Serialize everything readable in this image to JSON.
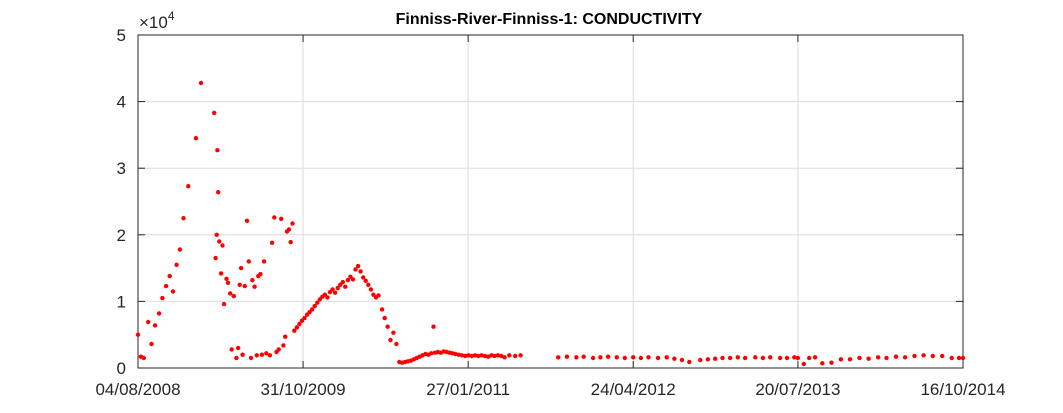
{
  "chart_data": {
    "type": "scatter",
    "title": "Finniss-River-Finniss-1: CONDUCTIVITY",
    "xlabel": "",
    "ylabel": "",
    "x_type": "date",
    "xlim": [
      "2008-08-04",
      "2014-10-16"
    ],
    "x_ticks": [
      {
        "date": "2008-08-04",
        "label": "04/08/2008"
      },
      {
        "date": "2009-10-31",
        "label": "31/10/2009"
      },
      {
        "date": "2011-01-27",
        "label": "27/01/2011"
      },
      {
        "date": "2012-04-24",
        "label": "24/04/2012"
      },
      {
        "date": "2013-07-20",
        "label": "20/07/2013"
      },
      {
        "date": "2014-10-16",
        "label": "16/10/2014"
      }
    ],
    "ylim": [
      0,
      50000
    ],
    "y_ticks": [
      {
        "value": 0,
        "label": "0"
      },
      {
        "value": 10000,
        "label": "1"
      },
      {
        "value": 20000,
        "label": "2"
      },
      {
        "value": 30000,
        "label": "3"
      },
      {
        "value": 40000,
        "label": "4"
      },
      {
        "value": 50000,
        "label": "5"
      }
    ],
    "y_multiplier_base": "×10",
    "y_multiplier_exp": "4",
    "grid": true,
    "marker_color": "#ff0000",
    "points": [
      [
        "2008-08-04",
        5000
      ],
      [
        "2008-08-12",
        1700
      ],
      [
        "2008-08-20",
        1500
      ],
      [
        "2008-09-01",
        6900
      ],
      [
        "2008-09-10",
        3600
      ],
      [
        "2008-09-20",
        6400
      ],
      [
        "2008-10-01",
        8200
      ],
      [
        "2008-10-10",
        10500
      ],
      [
        "2008-10-20",
        12300
      ],
      [
        "2008-10-30",
        13800
      ],
      [
        "2008-11-08",
        11500
      ],
      [
        "2008-11-18",
        15500
      ],
      [
        "2008-11-27",
        17800
      ],
      [
        "2008-12-07",
        22500
      ],
      [
        "2008-12-20",
        27300
      ],
      [
        "2009-01-10",
        34500
      ],
      [
        "2009-01-24",
        42800
      ],
      [
        "2009-03-01",
        38300
      ],
      [
        "2009-03-05",
        16500
      ],
      [
        "2009-03-08",
        20000
      ],
      [
        "2009-03-10",
        32700
      ],
      [
        "2009-03-12",
        26400
      ],
      [
        "2009-03-15",
        19000
      ],
      [
        "2009-03-20",
        14200
      ],
      [
        "2009-03-24",
        18400
      ],
      [
        "2009-03-28",
        9600
      ],
      [
        "2009-04-04",
        13400
      ],
      [
        "2009-04-08",
        12800
      ],
      [
        "2009-04-14",
        11200
      ],
      [
        "2009-04-18",
        2800
      ],
      [
        "2009-04-24",
        10800
      ],
      [
        "2009-05-01",
        1500
      ],
      [
        "2009-05-06",
        3000
      ],
      [
        "2009-05-10",
        12500
      ],
      [
        "2009-05-14",
        15000
      ],
      [
        "2009-05-18",
        2000
      ],
      [
        "2009-05-24",
        12300
      ],
      [
        "2009-05-30",
        22100
      ],
      [
        "2009-06-04",
        16000
      ],
      [
        "2009-06-10",
        1500
      ],
      [
        "2009-06-14",
        13200
      ],
      [
        "2009-06-20",
        12200
      ],
      [
        "2009-06-26",
        1900
      ],
      [
        "2009-06-30",
        13800
      ],
      [
        "2009-07-06",
        14100
      ],
      [
        "2009-07-10",
        2000
      ],
      [
        "2009-07-16",
        16000
      ],
      [
        "2009-07-22",
        2200
      ],
      [
        "2009-08-01",
        1900
      ],
      [
        "2009-08-07",
        18800
      ],
      [
        "2009-08-13",
        22600
      ],
      [
        "2009-08-19",
        2400
      ],
      [
        "2009-08-25",
        2800
      ],
      [
        "2009-09-01",
        22400
      ],
      [
        "2009-09-07",
        3400
      ],
      [
        "2009-09-12",
        4700
      ],
      [
        "2009-09-17",
        20500
      ],
      [
        "2009-09-22",
        20800
      ],
      [
        "2009-09-27",
        18900
      ],
      [
        "2009-10-02",
        21700
      ],
      [
        "2009-10-07",
        5600
      ],
      [
        "2009-10-14",
        6100
      ],
      [
        "2009-10-21",
        6600
      ],
      [
        "2009-10-28",
        7100
      ],
      [
        "2009-11-04",
        7500
      ],
      [
        "2009-11-11",
        8000
      ],
      [
        "2009-11-18",
        8400
      ],
      [
        "2009-11-25",
        8800
      ],
      [
        "2009-12-02",
        9300
      ],
      [
        "2009-12-09",
        9800
      ],
      [
        "2009-12-16",
        10300
      ],
      [
        "2009-12-23",
        10700
      ],
      [
        "2009-12-30",
        11000
      ],
      [
        "2010-01-06",
        10600
      ],
      [
        "2010-01-13",
        11400
      ],
      [
        "2010-01-20",
        11800
      ],
      [
        "2010-01-27",
        11300
      ],
      [
        "2010-02-03",
        12000
      ],
      [
        "2010-02-10",
        12500
      ],
      [
        "2010-02-17",
        12900
      ],
      [
        "2010-02-24",
        12200
      ],
      [
        "2010-03-03",
        13200
      ],
      [
        "2010-03-10",
        13700
      ],
      [
        "2010-03-17",
        13300
      ],
      [
        "2010-03-24",
        14800
      ],
      [
        "2010-03-31",
        15300
      ],
      [
        "2010-04-07",
        14500
      ],
      [
        "2010-04-14",
        13600
      ],
      [
        "2010-04-21",
        13100
      ],
      [
        "2010-04-28",
        12500
      ],
      [
        "2010-05-05",
        11800
      ],
      [
        "2010-05-12",
        11000
      ],
      [
        "2010-05-19",
        10600
      ],
      [
        "2010-05-26",
        10900
      ],
      [
        "2010-06-05",
        8800
      ],
      [
        "2010-06-12",
        7500
      ],
      [
        "2010-06-20",
        6200
      ],
      [
        "2010-06-28",
        4200
      ],
      [
        "2010-07-06",
        5300
      ],
      [
        "2010-07-14",
        3600
      ],
      [
        "2010-07-22",
        900
      ],
      [
        "2010-07-30",
        800
      ],
      [
        "2010-08-07",
        900
      ],
      [
        "2010-08-15",
        1000
      ],
      [
        "2010-08-23",
        1100
      ],
      [
        "2010-08-31",
        1300
      ],
      [
        "2010-09-08",
        1500
      ],
      [
        "2010-09-16",
        1700
      ],
      [
        "2010-09-24",
        1900
      ],
      [
        "2010-10-02",
        2100
      ],
      [
        "2010-10-10",
        2000
      ],
      [
        "2010-10-18",
        2200
      ],
      [
        "2010-10-24",
        6200
      ],
      [
        "2010-10-28",
        2300
      ],
      [
        "2010-11-05",
        2400
      ],
      [
        "2010-11-13",
        2300
      ],
      [
        "2010-11-21",
        2500
      ],
      [
        "2010-11-29",
        2400
      ],
      [
        "2010-12-07",
        2300
      ],
      [
        "2010-12-15",
        2200
      ],
      [
        "2010-12-23",
        2100
      ],
      [
        "2011-01-01",
        2000
      ],
      [
        "2011-01-10",
        1900
      ],
      [
        "2011-01-19",
        1800
      ],
      [
        "2011-01-28",
        1900
      ],
      [
        "2011-02-06",
        1800
      ],
      [
        "2011-02-15",
        1900
      ],
      [
        "2011-02-24",
        1800
      ],
      [
        "2011-03-05",
        1900
      ],
      [
        "2011-03-14",
        1800
      ],
      [
        "2011-03-23",
        1700
      ],
      [
        "2011-04-01",
        1900
      ],
      [
        "2011-04-10",
        1800
      ],
      [
        "2011-04-19",
        1900
      ],
      [
        "2011-04-28",
        1800
      ],
      [
        "2011-05-07",
        1600
      ],
      [
        "2011-05-20",
        1900
      ],
      [
        "2011-06-05",
        1800
      ],
      [
        "2011-06-20",
        1900
      ],
      [
        "2011-10-01",
        1600
      ],
      [
        "2011-10-25",
        1700
      ],
      [
        "2011-11-20",
        1600
      ],
      [
        "2011-12-10",
        1700
      ],
      [
        "2012-01-05",
        1500
      ],
      [
        "2012-01-25",
        1600
      ],
      [
        "2012-02-15",
        1700
      ],
      [
        "2012-03-10",
        1600
      ],
      [
        "2012-04-01",
        1500
      ],
      [
        "2012-04-24",
        1600
      ],
      [
        "2012-05-15",
        1500
      ],
      [
        "2012-06-05",
        1600
      ],
      [
        "2012-07-01",
        1500
      ],
      [
        "2012-07-25",
        1600
      ],
      [
        "2012-08-15",
        1400
      ],
      [
        "2012-09-05",
        1200
      ],
      [
        "2012-09-25",
        900
      ],
      [
        "2012-10-25",
        1200
      ],
      [
        "2012-11-15",
        1300
      ],
      [
        "2012-12-05",
        1400
      ],
      [
        "2012-12-25",
        1500
      ],
      [
        "2013-01-15",
        1500
      ],
      [
        "2013-02-05",
        1600
      ],
      [
        "2013-02-25",
        1500
      ],
      [
        "2013-03-25",
        1600
      ],
      [
        "2013-04-15",
        1500
      ],
      [
        "2013-05-05",
        1600
      ],
      [
        "2013-06-01",
        1500
      ],
      [
        "2013-06-20",
        1500
      ],
      [
        "2013-07-10",
        1600
      ],
      [
        "2013-07-20",
        1500
      ],
      [
        "2013-08-05",
        600
      ],
      [
        "2013-08-20",
        1500
      ],
      [
        "2013-09-05",
        1600
      ],
      [
        "2013-09-25",
        700
      ],
      [
        "2013-10-20",
        800
      ],
      [
        "2013-11-15",
        1300
      ],
      [
        "2013-12-10",
        1300
      ],
      [
        "2014-01-05",
        1500
      ],
      [
        "2014-01-30",
        1400
      ],
      [
        "2014-02-25",
        1600
      ],
      [
        "2014-03-20",
        1500
      ],
      [
        "2014-04-15",
        1700
      ],
      [
        "2014-05-10",
        1600
      ],
      [
        "2014-06-05",
        1800
      ],
      [
        "2014-06-30",
        1900
      ],
      [
        "2014-07-25",
        1800
      ],
      [
        "2014-08-20",
        1800
      ],
      [
        "2014-09-15",
        1500
      ],
      [
        "2014-10-05",
        1500
      ],
      [
        "2014-10-16",
        1500
      ]
    ]
  }
}
